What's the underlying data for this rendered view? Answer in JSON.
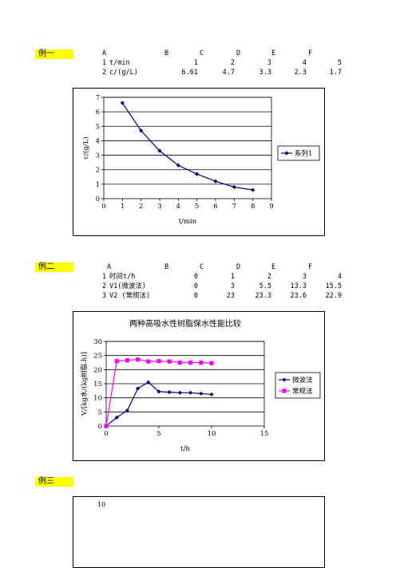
{
  "ex1": {
    "label": "例一",
    "col_headers": [
      "A",
      "B",
      "C",
      "D",
      "E",
      "F"
    ],
    "rows": [
      {
        "num": "1",
        "name": "t/min",
        "values": [
          "1",
          "2",
          "3",
          "4",
          "5"
        ]
      },
      {
        "num": "2",
        "name": "c/(g/L)",
        "values": [
          "6.61",
          "4.7",
          "3.3",
          "2.3",
          "1.7"
        ]
      }
    ],
    "chart": {
      "xlabel": "t/min",
      "ylabel": "c/(g/L)",
      "legend": "系列1",
      "xticks": [
        "0",
        "1",
        "2",
        "3",
        "4",
        "5",
        "6",
        "7",
        "8",
        "9"
      ],
      "yticks": [
        "0",
        "1",
        "2",
        "3",
        "4",
        "5",
        "6",
        "7"
      ]
    }
  },
  "ex2": {
    "label": "例二",
    "col_headers": [
      "A",
      "B",
      "C",
      "D",
      "E",
      "F"
    ],
    "rows": [
      {
        "num": "1",
        "name": "时间t/h",
        "values": [
          "0",
          "1",
          "2",
          "3",
          "4"
        ]
      },
      {
        "num": "2",
        "name": "V1(微波法)",
        "values": [
          "0",
          "3",
          "5.5",
          "13.3",
          "15.5"
        ]
      },
      {
        "num": "3",
        "name": "V2 (常规法)",
        "values": [
          "0",
          "23",
          "23.3",
          "23.6",
          "22.9"
        ]
      }
    ],
    "chart": {
      "title": "两种高吸水性树脂保水性能比较",
      "xlabel": "t/h",
      "ylabel": "V/[kg水/(kg树脂.h)]",
      "xticks": [
        "0",
        "5",
        "10",
        "15"
      ],
      "yticks": [
        "0",
        "5",
        "10",
        "15",
        "20",
        "25",
        "30"
      ],
      "legend": [
        "微波法",
        "常规法"
      ]
    }
  },
  "ex3": {
    "label": "例三",
    "chart_tick": "10"
  },
  "chart_data": [
    {
      "type": "line",
      "xlabel": "t/min",
      "ylabel": "c/(g/L)",
      "xlim": [
        0,
        9
      ],
      "ylim": [
        0,
        7
      ],
      "grid": true,
      "legend_placement": "right",
      "series": [
        {
          "name": "系列1",
          "color": "#000080",
          "marker": "diamond",
          "x": [
            1,
            2,
            3,
            4,
            5,
            6,
            7,
            8
          ],
          "y": [
            6.61,
            4.7,
            3.3,
            2.3,
            1.7,
            1.2,
            0.8,
            0.6
          ]
        }
      ]
    },
    {
      "type": "line",
      "title": "两种高吸水性树脂保水性能比较",
      "xlabel": "t/h",
      "ylabel": "V/[kg水/(kg树脂.h)]",
      "xlim": [
        0,
        15
      ],
      "ylim": [
        0,
        30
      ],
      "grid": true,
      "legend_placement": "right",
      "series": [
        {
          "name": "微波法",
          "color": "#000080",
          "marker": "diamond",
          "x": [
            0,
            1,
            2,
            3,
            4,
            5,
            6,
            7,
            8,
            9,
            10
          ],
          "y": [
            0,
            3,
            5.5,
            13.3,
            15.5,
            12.2,
            12,
            11.8,
            11.8,
            11.5,
            11.2
          ]
        },
        {
          "name": "常规法",
          "color": "#ff00ff",
          "marker": "square",
          "x": [
            0,
            1,
            2,
            3,
            4,
            5,
            6,
            7,
            8,
            9,
            10
          ],
          "y": [
            0,
            23,
            23.3,
            23.6,
            22.9,
            23,
            22.9,
            22.5,
            22.5,
            22.5,
            22.3
          ]
        }
      ]
    }
  ]
}
